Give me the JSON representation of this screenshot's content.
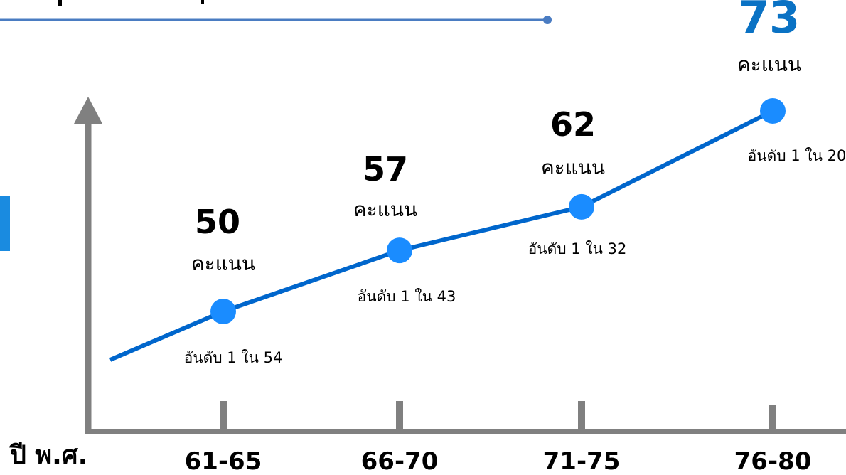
{
  "chart_data": {
    "type": "line",
    "xlabel": "ปี พ.ศ.",
    "categories": [
      "61-65",
      "66-70",
      "71-75",
      "76-80"
    ],
    "series": [
      {
        "values": [
          50,
          57,
          62,
          73
        ],
        "unit": "คะแนน",
        "ranks": [
          "อันดับ 1 ใน 54",
          "อันดับ 1 ใน 43",
          "อันดับ 1 ใน 32",
          "อันดับ 1 ใน 20"
        ]
      }
    ],
    "grid": false,
    "legend": "none"
  },
  "colors": {
    "line": "#0066cc",
    "marker": "#1a8cff",
    "highlight_value": "#0a72c4",
    "axis": "#808080",
    "header_rule": "#4a7cc2",
    "left_accent": "#1a8be0",
    "text": "#000000"
  }
}
